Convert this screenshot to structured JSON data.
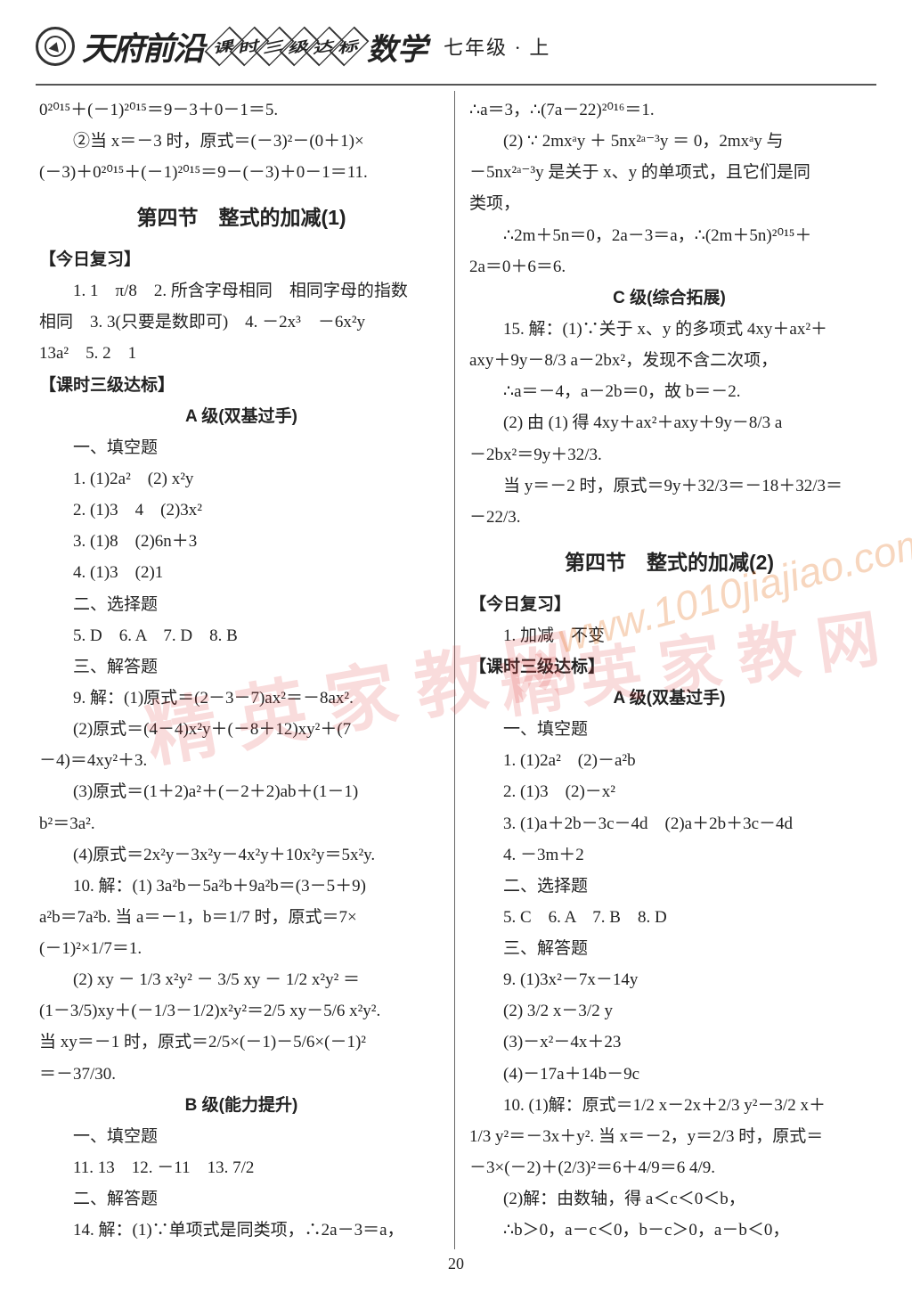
{
  "header": {
    "brand": "天府前沿",
    "diamonds": [
      "课",
      "时",
      "三",
      "级",
      "达",
      "标"
    ],
    "subject": "数学",
    "grade": "七年级 · 上"
  },
  "watermarks": {
    "wm1": "精 英 家 教 网",
    "wm2": "精 英 家 教 网",
    "url": "www.1010jiajiao.com"
  },
  "pagenum": "20",
  "left": {
    "l1": "0²⁰¹⁵＋(－1)²⁰¹⁵＝9－3＋0－1＝5.",
    "l2": "②当 x＝－3 时，原式＝(－3)²－(0＋1)×",
    "l3": "(－3)＋0²⁰¹⁵＋(－1)²⁰¹⁵＝9－(－3)＋0－1＝11.",
    "sec_title": "第四节　整式的加减(1)",
    "r_label": "【今日复习】",
    "r1": "1. 1　π/8　2. 所含字母相同　相同字母的指数",
    "r2": "相同　3. 3(只要是数即可)　4. －2x³　－6x²y",
    "r3": "13a²　5. 2　1",
    "d_label": "【课时三级达标】",
    "levelA": "A 级(双基过手)",
    "a_fill": "一、填空题",
    "a1": "1. (1)2a²　(2) x²y",
    "a2": "2. (1)3　4　(2)3x²",
    "a3": "3. (1)8　(2)6n＋3",
    "a4": "4. (1)3　(2)1",
    "a_sel": "二、选择题",
    "a5": "5. D　6. A　7. D　8. B",
    "a_ans": "三、解答题",
    "a9a": "9. 解：(1)原式＝(2－3－7)ax²＝－8ax².",
    "a9b": "(2)原式＝(4－4)x²y＋(－8＋12)xy²＋(7",
    "a9c": "－4)＝4xy²＋3.",
    "a9d": "(3)原式＝(1＋2)a²＋(－2＋2)ab＋(1－1)",
    "a9e": "b²＝3a².",
    "a9f": "(4)原式＝2x²y－3x²y－4x²y＋10x²y＝5x²y.",
    "a10a": "10. 解：(1) 3a²b－5a²b＋9a²b＝(3－5＋9)",
    "a10b": "a²b＝7a²b. 当 a＝－1，b＝1/7 时，原式＝7×",
    "a10c": "(－1)²×1/7＝1.",
    "a10d": "(2) xy － 1/3 x²y² － 3/5 xy － 1/2 x²y² ＝",
    "a10e": "(1－3/5)xy＋(－1/3－1/2)x²y²＝2/5 xy－5/6 x²y².",
    "a10f": "当 xy＝－1 时，原式＝2/5×(－1)－5/6×(－1)²",
    "a10g": "＝－37/30.",
    "levelB": "B 级(能力提升)",
    "b_fill": "一、填空题",
    "b11": "11. 13　12. －11　13. 7/2",
    "b_ans": "二、解答题",
    "b14": "14. 解：(1)∵单项式是同类项，∴2a－3＝a，"
  },
  "right": {
    "l1": "∴a＝3，∴(7a－22)²⁰¹⁶＝1.",
    "l2": "(2) ∵ 2mxᵃy ＋ 5nx²ᵃ⁻³y ＝ 0，2mxᵃy 与",
    "l3": "－5nx²ᵃ⁻³y 是关于 x、y 的单项式，且它们是同",
    "l4": "类项，",
    "l5": "∴2m＋5n＝0，2a－3＝a，∴(2m＋5n)²⁰¹⁵＋",
    "l6": "2a＝0＋6＝6.",
    "levelC": "C 级(综合拓展)",
    "c15a": "15. 解：(1)∵关于 x、y 的多项式 4xy＋ax²＋",
    "c15b": "axy＋9y－8/3 a－2bx²，发现不含二次项，",
    "c15c": "∴a＝－4，a－2b＝0，故 b＝－2.",
    "c15d": "(2) 由 (1) 得 4xy＋ax²＋axy＋9y－8/3 a",
    "c15e": "－2bx²＝9y＋32/3.",
    "c15f": "当 y＝－2 时，原式＝9y＋32/3＝－18＋32/3＝",
    "c15g": "－22/3.",
    "sec_title": "第四节　整式的加减(2)",
    "r_label": "【今日复习】",
    "r1": "1. 加减　不变",
    "d_label": "【课时三级达标】",
    "levelA": "A 级(双基过手)",
    "a_fill": "一、填空题",
    "a1": "1. (1)2a²　(2)－a²b",
    "a2": "2. (1)3　(2)－x²",
    "a3": "3. (1)a＋2b－3c－4d　(2)a＋2b＋3c－4d",
    "a4": "4. －3m＋2",
    "a_sel": "二、选择题",
    "a5": "5. C　6. A　7. B　8. D",
    "a_ans": "三、解答题",
    "a9a": "9. (1)3x²－7x－14y",
    "a9b": "(2) 3/2 x－3/2 y",
    "a9c": "(3)－x²－4x＋23",
    "a9d": "(4)－17a＋14b－9c",
    "a10a": "10. (1)解：原式＝1/2 x－2x＋2/3 y²－3/2 x＋",
    "a10b": "1/3 y²＝－3x＋y². 当 x＝－2，y＝2/3 时，原式＝",
    "a10c": "－3×(－2)＋(2/3)²＝6＋4/9＝6 4/9.",
    "a10d": "(2)解：由数轴，得 a＜c＜0＜b，",
    "a10e": "∴b＞0，a－c＜0，b－c＞0，a－b＜0，"
  }
}
